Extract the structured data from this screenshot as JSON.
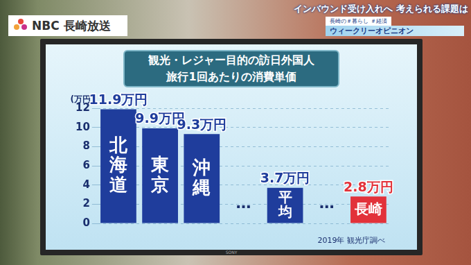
{
  "screen_overlay": {
    "logo": "NBC 長崎放送",
    "headline": "インバウンド受け入れへ 考えられる課題は",
    "tags": "長崎の＃暮らし ＃経済",
    "segment": "ウィークリーオピニオン",
    "monitor_brand": "SONY"
  },
  "chart_data": {
    "type": "bar",
    "title": "観光・レジャー目的の訪日外国人\n旅行1回あたりの消費単価",
    "y_label": "(万円)",
    "annotations": [
      "2019年 観光庁調べ"
    ],
    "categories": [
      "北海道",
      "東京",
      "沖縄",
      "…",
      "平均",
      "…",
      "長崎"
    ],
    "values": [
      11.9,
      9.9,
      9.3,
      null,
      3.7,
      null,
      2.8
    ],
    "value_labels": [
      "11.9万円",
      "9.9万円",
      "9.3万円",
      null,
      "3.7万円",
      null,
      "2.8万円"
    ],
    "colors": [
      "#1f3d9c",
      "#1f3d9c",
      "#1f3d9c",
      "#1f3d9c",
      "#1f3d9c",
      "#1f3d9c",
      "#e2323a"
    ],
    "ylim": [
      0,
      12
    ],
    "yticks": [
      0,
      2,
      4,
      6,
      8,
      10,
      12
    ],
    "grid": true,
    "data_labels": true,
    "tick_labels": "y"
  }
}
